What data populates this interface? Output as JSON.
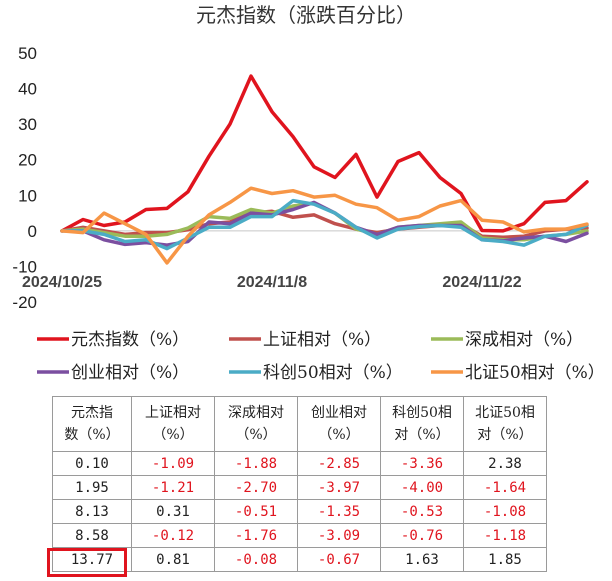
{
  "chart_data": {
    "type": "line",
    "title": "元杰指数（涨跌百分比）",
    "ylim": [
      -20,
      50
    ],
    "yticks": [
      -20,
      -10,
      0,
      10,
      20,
      30,
      40,
      50
    ],
    "xtick_labels": [
      {
        "index": 0,
        "label": "2024/10/25"
      },
      {
        "index": 10,
        "label": "2024/11/8"
      },
      {
        "index": 20,
        "label": "2024/11/22"
      }
    ],
    "legend_position": "bottom",
    "series": [
      {
        "name": "元杰指数（%）",
        "color": "#e0141e",
        "values": [
          0,
          3.2,
          1.5,
          2.5,
          6,
          6.3,
          11,
          21,
          30,
          43.5,
          33.5,
          26.5,
          18,
          15,
          21.5,
          9.5,
          19.5,
          22,
          15,
          10.5,
          0.1,
          0,
          2,
          8,
          8.5,
          13.8
        ]
      },
      {
        "name": "上证相对（%）",
        "color": "#c0504d",
        "values": [
          0,
          1,
          0,
          -1,
          -0.5,
          -0.5,
          0.3,
          2,
          2.5,
          5,
          5.5,
          3.8,
          4.5,
          2,
          0.5,
          -0.5,
          0.5,
          1,
          1.5,
          2,
          -1.5,
          -1.8,
          -1.5,
          0,
          0.5,
          0.8
        ]
      },
      {
        "name": "深成相对（%）",
        "color": "#9bbb59",
        "values": [
          0,
          0.5,
          -0.5,
          -1.5,
          -1.5,
          -1,
          0.8,
          4,
          3.5,
          6,
          5,
          7,
          7.8,
          5,
          0.5,
          -1,
          1,
          1.5,
          2,
          2.5,
          -2,
          -2.5,
          -2.5,
          -1.5,
          -1,
          0
        ]
      },
      {
        "name": "创业相对（%）",
        "color": "#7b4fa0",
        "values": [
          0,
          0,
          -2.5,
          -3.8,
          -3.3,
          -4,
          -3,
          2.5,
          2,
          5,
          4.5,
          6,
          8,
          5,
          1,
          -1,
          1,
          1.5,
          1.5,
          1.5,
          -2.5,
          -2.8,
          -2,
          -1.5,
          -3,
          -0.7
        ]
      },
      {
        "name": "科创50相对（%）",
        "color": "#4bacc6",
        "values": [
          0,
          0,
          -1,
          -3,
          -2.5,
          -5,
          -2,
          1,
          1,
          4,
          4,
          8.5,
          7.5,
          5,
          1,
          -2,
          0.5,
          1.2,
          1.5,
          1,
          -2.5,
          -3,
          -4,
          -1.5,
          -1,
          1.6
        ]
      },
      {
        "name": "北证50相对（%）",
        "color": "#f79646",
        "values": [
          0,
          -0.5,
          5,
          2,
          -1,
          -9,
          -1.5,
          4.5,
          8,
          12,
          10.5,
          11.3,
          9.5,
          10,
          7.5,
          6.5,
          3,
          4,
          7,
          8.5,
          3,
          2.5,
          -0.3,
          0.5,
          0.5,
          1.9
        ]
      }
    ]
  },
  "table": {
    "headers": [
      [
        "元杰指",
        "数（%）"
      ],
      [
        "上证相对",
        "（%）"
      ],
      [
        "深成相对",
        "（%）"
      ],
      [
        "创业相对",
        "（%）"
      ],
      [
        "科创50相",
        "对（%）"
      ],
      [
        "北证50相",
        "对（%）"
      ]
    ],
    "rows": [
      [
        "0.10",
        "-1.09",
        "-1.88",
        "-2.85",
        "-3.36",
        "2.38"
      ],
      [
        "1.95",
        "-1.21",
        "-2.70",
        "-3.97",
        "-4.00",
        "-1.64"
      ],
      [
        "8.13",
        "0.31",
        "-0.51",
        "-1.35",
        "-0.53",
        "-1.08"
      ],
      [
        "8.58",
        "-0.12",
        "-1.76",
        "-3.09",
        "-0.76",
        "-1.18"
      ],
      [
        "13.77",
        "0.81",
        "-0.08",
        "-0.67",
        "1.63",
        "1.85"
      ]
    ],
    "highlight_color": "#e0141e"
  }
}
